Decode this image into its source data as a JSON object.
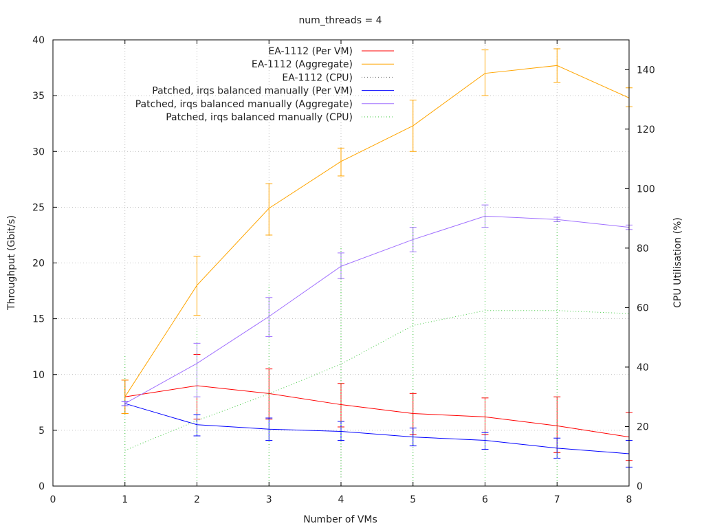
{
  "chart_data": {
    "type": "line",
    "title": "num_threads = 4",
    "xlabel": "Number of VMs",
    "ylabel": "Throughput (Gbit/s)",
    "y2label": "CPU Utilisation (%)",
    "xlim": [
      0,
      8
    ],
    "ylim": [
      0,
      40
    ],
    "y2lim": [
      0,
      150
    ],
    "x_ticks": [
      0,
      1,
      2,
      3,
      4,
      5,
      6,
      7,
      8
    ],
    "y_ticks": [
      0,
      5,
      10,
      15,
      20,
      25,
      30,
      35,
      40
    ],
    "y2_ticks": [
      0,
      20,
      40,
      60,
      80,
      100,
      120,
      140
    ],
    "grid": true,
    "legend_position": "top-right",
    "series": [
      {
        "name": "EA-1112 (Per VM)",
        "axis": "y",
        "color": "#ff0000",
        "style": "solid",
        "x": [
          1,
          2,
          3,
          4,
          5,
          6,
          7,
          8
        ],
        "values": [
          8.0,
          9.0,
          8.3,
          7.3,
          6.5,
          6.2,
          5.4,
          4.4
        ],
        "err_low": [
          6.5,
          6.0,
          6.0,
          5.3,
          4.6,
          4.6,
          3.0,
          2.3
        ],
        "err_high": [
          9.5,
          11.8,
          10.5,
          9.2,
          8.3,
          7.9,
          8.0,
          6.6
        ]
      },
      {
        "name": "EA-1112 (Aggregate)",
        "axis": "y",
        "color": "#ffa500",
        "style": "solid",
        "x": [
          1,
          2,
          3,
          4,
          5,
          6,
          7,
          8
        ],
        "values": [
          8.0,
          18.0,
          24.9,
          29.1,
          32.3,
          37.0,
          37.7,
          34.8
        ],
        "err_low": [
          6.5,
          15.3,
          22.5,
          27.8,
          30.0,
          35.0,
          36.2,
          34.0
        ],
        "err_high": [
          9.5,
          20.6,
          27.1,
          30.3,
          34.6,
          39.1,
          39.2,
          35.7
        ]
      },
      {
        "name": "EA-1112 (CPU)",
        "axis": "y2",
        "color": "#707070",
        "style": "dotted",
        "x": [],
        "values": []
      },
      {
        "name": "Patched, irqs balanced manually (Per VM)",
        "axis": "y",
        "color": "#0000ff",
        "style": "solid",
        "x": [
          1,
          2,
          3,
          4,
          5,
          6,
          7,
          8
        ],
        "values": [
          7.4,
          5.5,
          5.1,
          4.9,
          4.4,
          4.1,
          3.4,
          2.9
        ],
        "err_low": [
          7.2,
          4.5,
          4.1,
          4.1,
          3.6,
          3.3,
          2.5,
          1.7
        ],
        "err_high": [
          7.6,
          6.4,
          6.1,
          5.8,
          5.2,
          4.8,
          4.3,
          4.1
        ]
      },
      {
        "name": "Patched, irqs balanced manually (Aggregate)",
        "axis": "y",
        "color": "#a070ff",
        "style": "solid",
        "x": [
          1,
          2,
          3,
          4,
          5,
          6,
          7,
          8
        ],
        "values": [
          7.4,
          11.0,
          15.2,
          19.7,
          22.1,
          24.2,
          23.9,
          23.2
        ],
        "err_low": [
          7.2,
          8.0,
          13.4,
          18.6,
          21.0,
          23.2,
          23.7,
          23.0
        ],
        "err_high": [
          7.6,
          12.8,
          16.9,
          20.9,
          23.2,
          25.2,
          24.1,
          23.4
        ]
      },
      {
        "name": "Patched, irqs balanced manually (CPU)",
        "axis": "y2",
        "color": "#3ec83e",
        "style": "dotted",
        "x": [
          1,
          2,
          3,
          4,
          5,
          6,
          7,
          8
        ],
        "values": [
          12,
          22,
          31,
          41,
          54,
          59,
          59,
          58
        ],
        "err_low": [
          0,
          0,
          0,
          3,
          0,
          0,
          0,
          0
        ],
        "err_high": [
          44,
          53,
          68,
          80,
          90,
          100,
          90,
          90
        ]
      }
    ]
  }
}
